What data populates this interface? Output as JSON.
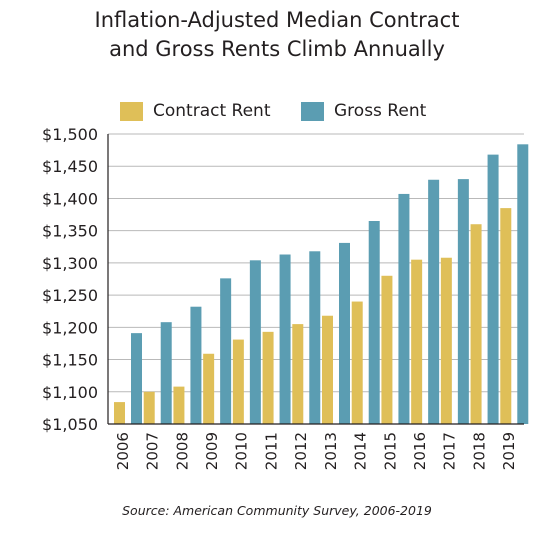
{
  "title_lines": [
    "Inflation-Adjusted Median Contract",
    "and Gross Rents Climb Annually"
  ],
  "source": "Source: American Community Survey, 2006-2019",
  "chart_data": {
    "type": "bar",
    "title": "Inflation-Adjusted Median Contract and Gross Rents Climb Annually",
    "categories": [
      "2006",
      "2007",
      "2008",
      "2009",
      "2010",
      "2011",
      "2012",
      "2013",
      "2014",
      "2015",
      "2016",
      "2017",
      "2018",
      "2019"
    ],
    "series": [
      {
        "name": "Contract Rent",
        "color": "#dfbf58",
        "values": [
          1084,
          1100,
          1108,
          1159,
          1181,
          1193,
          1205,
          1218,
          1240,
          1280,
          1305,
          1308,
          1360,
          1385
        ]
      },
      {
        "name": "Gross Rent",
        "color": "#5b9db2",
        "values": [
          1191,
          1208,
          1232,
          1276,
          1304,
          1313,
          1318,
          1331,
          1365,
          1407,
          1429,
          1430,
          1468,
          1484
        ]
      }
    ],
    "ylim": [
      1050,
      1500
    ],
    "yticks": [
      1050,
      1100,
      1150,
      1200,
      1250,
      1300,
      1350,
      1400,
      1450,
      1500
    ],
    "ytick_labels": [
      "$1,050",
      "$1,100",
      "$1,150",
      "$1,200",
      "$1,250",
      "$1,300",
      "$1,350",
      "$1,400",
      "$1,450",
      "$1,500"
    ],
    "xlabel": "",
    "ylabel": "",
    "grid": true,
    "legend": "top"
  }
}
